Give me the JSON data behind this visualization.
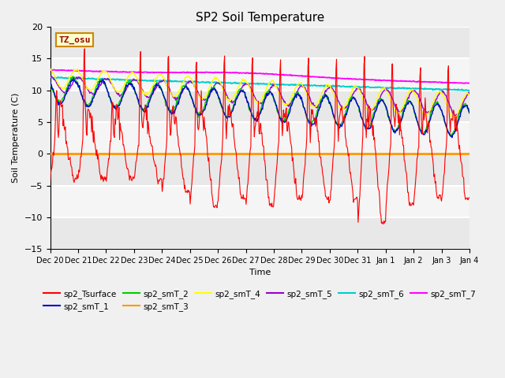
{
  "title": "SP2 Soil Temperature",
  "ylabel": "Soil Temperature (C)",
  "xlabel": "Time",
  "ylim": [
    -15,
    20
  ],
  "yticks": [
    -15,
    -10,
    -5,
    0,
    5,
    10,
    15,
    20
  ],
  "tz_label": "TZ_osu",
  "x_tick_labels": [
    "Dec 20",
    "Dec 21",
    "Dec 22",
    "Dec 23",
    "Dec 24",
    "Dec 25",
    "Dec 26",
    "Dec 27",
    "Dec 28",
    "Dec 29",
    "Dec 30",
    "Dec 31",
    "Jan 1",
    "Jan 2",
    "Jan 3",
    "Jan 4"
  ],
  "colors": {
    "surface": "#ff0000",
    "smT1": "#0000cc",
    "smT2": "#00cc00",
    "smT3": "#ff9900",
    "smT4": "#ffff00",
    "smT5": "#9900cc",
    "smT6": "#00cccc",
    "smT7": "#ff00ff"
  },
  "background_color": "#f0f0f0",
  "plot_bg_color": "#f0f0f0",
  "grid_color": "#ffffff",
  "zero_line_color": "#ff9900"
}
